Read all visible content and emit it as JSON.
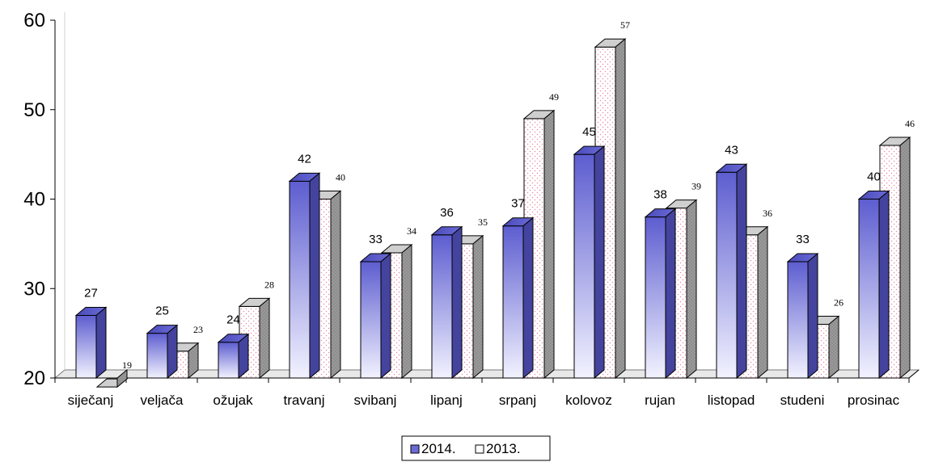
{
  "chart_data": {
    "type": "bar",
    "categories": [
      "siječanj",
      "veljača",
      "ožujak",
      "travanj",
      "svibanj",
      "lipanj",
      "srpanj",
      "kolovoz",
      "rujan",
      "listopad",
      "studeni",
      "prosinac"
    ],
    "series": [
      {
        "name": "2014.",
        "values": [
          27,
          25,
          24,
          42,
          33,
          36,
          37,
          45,
          38,
          43,
          33,
          40
        ],
        "color": "#6b6bd6"
      },
      {
        "name": "2013.",
        "values": [
          19,
          23,
          28,
          40,
          34,
          35,
          49,
          57,
          39,
          36,
          26,
          46
        ],
        "color": "#ffffff"
      }
    ],
    "data_labels": {
      "2014.": [
        "27",
        "25",
        "24",
        "42",
        "33",
        "36",
        "37",
        "45",
        "38",
        "43",
        "33",
        "40"
      ],
      "2013.": [
        "19",
        "23",
        "28",
        "40",
        "34",
        "35",
        "49",
        "57",
        "39",
        "36",
        "26",
        "46"
      ]
    },
    "ylim": [
      20,
      60
    ],
    "yticks": [
      20,
      30,
      40,
      50,
      60
    ],
    "ytick_labels": [
      "20",
      "30",
      "40",
      "50",
      "60"
    ],
    "title": "",
    "xlabel": "",
    "ylabel": "",
    "legend_position": "bottom",
    "grid": false,
    "style": "3d-column"
  }
}
